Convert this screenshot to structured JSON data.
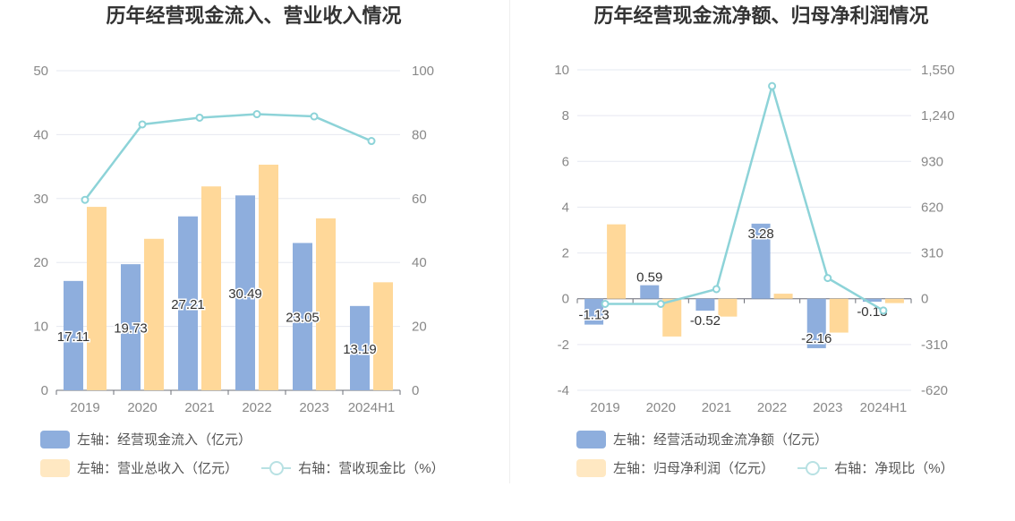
{
  "colors": {
    "bar_a": "#8eaedd",
    "bar_b": "#ffd899",
    "line": "#8dd3d8",
    "grid": "#e6e8f0",
    "axis_text": "#888888"
  },
  "chart_data": [
    {
      "type": "bar",
      "title": "历年经营现金流入、营业收入情况",
      "categories": [
        "2019",
        "2020",
        "2021",
        "2022",
        "2023",
        "2024H1"
      ],
      "y_left": {
        "min": 0,
        "max": 50,
        "ticks": [
          "0",
          "10",
          "20",
          "30",
          "40",
          "50"
        ]
      },
      "y_right": {
        "min": 0,
        "max": 100,
        "ticks": [
          "0",
          "20",
          "40",
          "60",
          "80",
          "100"
        ]
      },
      "series": [
        {
          "name": "左轴：经营现金流入（亿元）",
          "kind": "bar",
          "axis": "left",
          "values": [
            17.11,
            19.73,
            27.21,
            30.49,
            23.05,
            13.19
          ],
          "labels": [
            "17.11",
            "19.73",
            "27.21",
            "30.49",
            "23.05",
            "13.19"
          ]
        },
        {
          "name": "左轴：营业总收入（亿元）",
          "kind": "bar",
          "axis": "left",
          "values": [
            28.7,
            23.7,
            31.9,
            35.3,
            26.9,
            16.9
          ]
        },
        {
          "name": "右轴：营收现金比（%）",
          "kind": "line",
          "axis": "right",
          "values": [
            59.6,
            83.2,
            85.3,
            86.4,
            85.7,
            78.0
          ]
        }
      ],
      "legend": [
        {
          "label": "左轴：经营现金流入（亿元）",
          "kind": "bar",
          "color": "#8eaedd"
        },
        {
          "label": "左轴：营业总收入（亿元）",
          "kind": "bar",
          "color": "#ffe8c2"
        },
        {
          "label": "右轴：营收现金比（%）",
          "kind": "line",
          "color": "#b8e1e3"
        }
      ]
    },
    {
      "type": "bar",
      "title": "历年经营现金流净额、归母净利润情况",
      "categories": [
        "2019",
        "2020",
        "2021",
        "2022",
        "2023",
        "2024H1"
      ],
      "y_left": {
        "min": -4,
        "max": 10,
        "ticks": [
          "-4",
          "-2",
          "0",
          "2",
          "4",
          "6",
          "8",
          "10"
        ]
      },
      "y_right": {
        "min": -620,
        "max": 1550,
        "ticks": [
          "-620",
          "-310",
          "0",
          "310",
          "620",
          "930",
          "1,240",
          "1,550"
        ]
      },
      "series": [
        {
          "name": "左轴：经营活动现金流净额（亿元）",
          "kind": "bar",
          "axis": "left",
          "values": [
            -1.13,
            0.59,
            -0.52,
            3.28,
            -2.16,
            -0.13
          ],
          "labels": [
            "-1.13",
            "0.59",
            "-0.52",
            "3.28",
            "-2.16",
            "-0.13"
          ]
        },
        {
          "name": "左轴：归母净利润（亿元）",
          "kind": "bar",
          "axis": "left",
          "values": [
            3.25,
            -1.65,
            -0.78,
            0.22,
            -1.48,
            -0.19
          ]
        },
        {
          "name": "右轴：净现比（%）",
          "kind": "line",
          "axis": "right",
          "values": [
            -35,
            -35,
            65,
            1440,
            140,
            -80
          ]
        }
      ],
      "legend": [
        {
          "label": "左轴：经营活动现金流净额（亿元）",
          "kind": "bar",
          "color": "#8eaedd"
        },
        {
          "label": "左轴：归母净利润（亿元）",
          "kind": "bar",
          "color": "#ffe8c2"
        },
        {
          "label": "右轴：净现比（%）",
          "kind": "line",
          "color": "#b8e1e3"
        }
      ]
    }
  ]
}
